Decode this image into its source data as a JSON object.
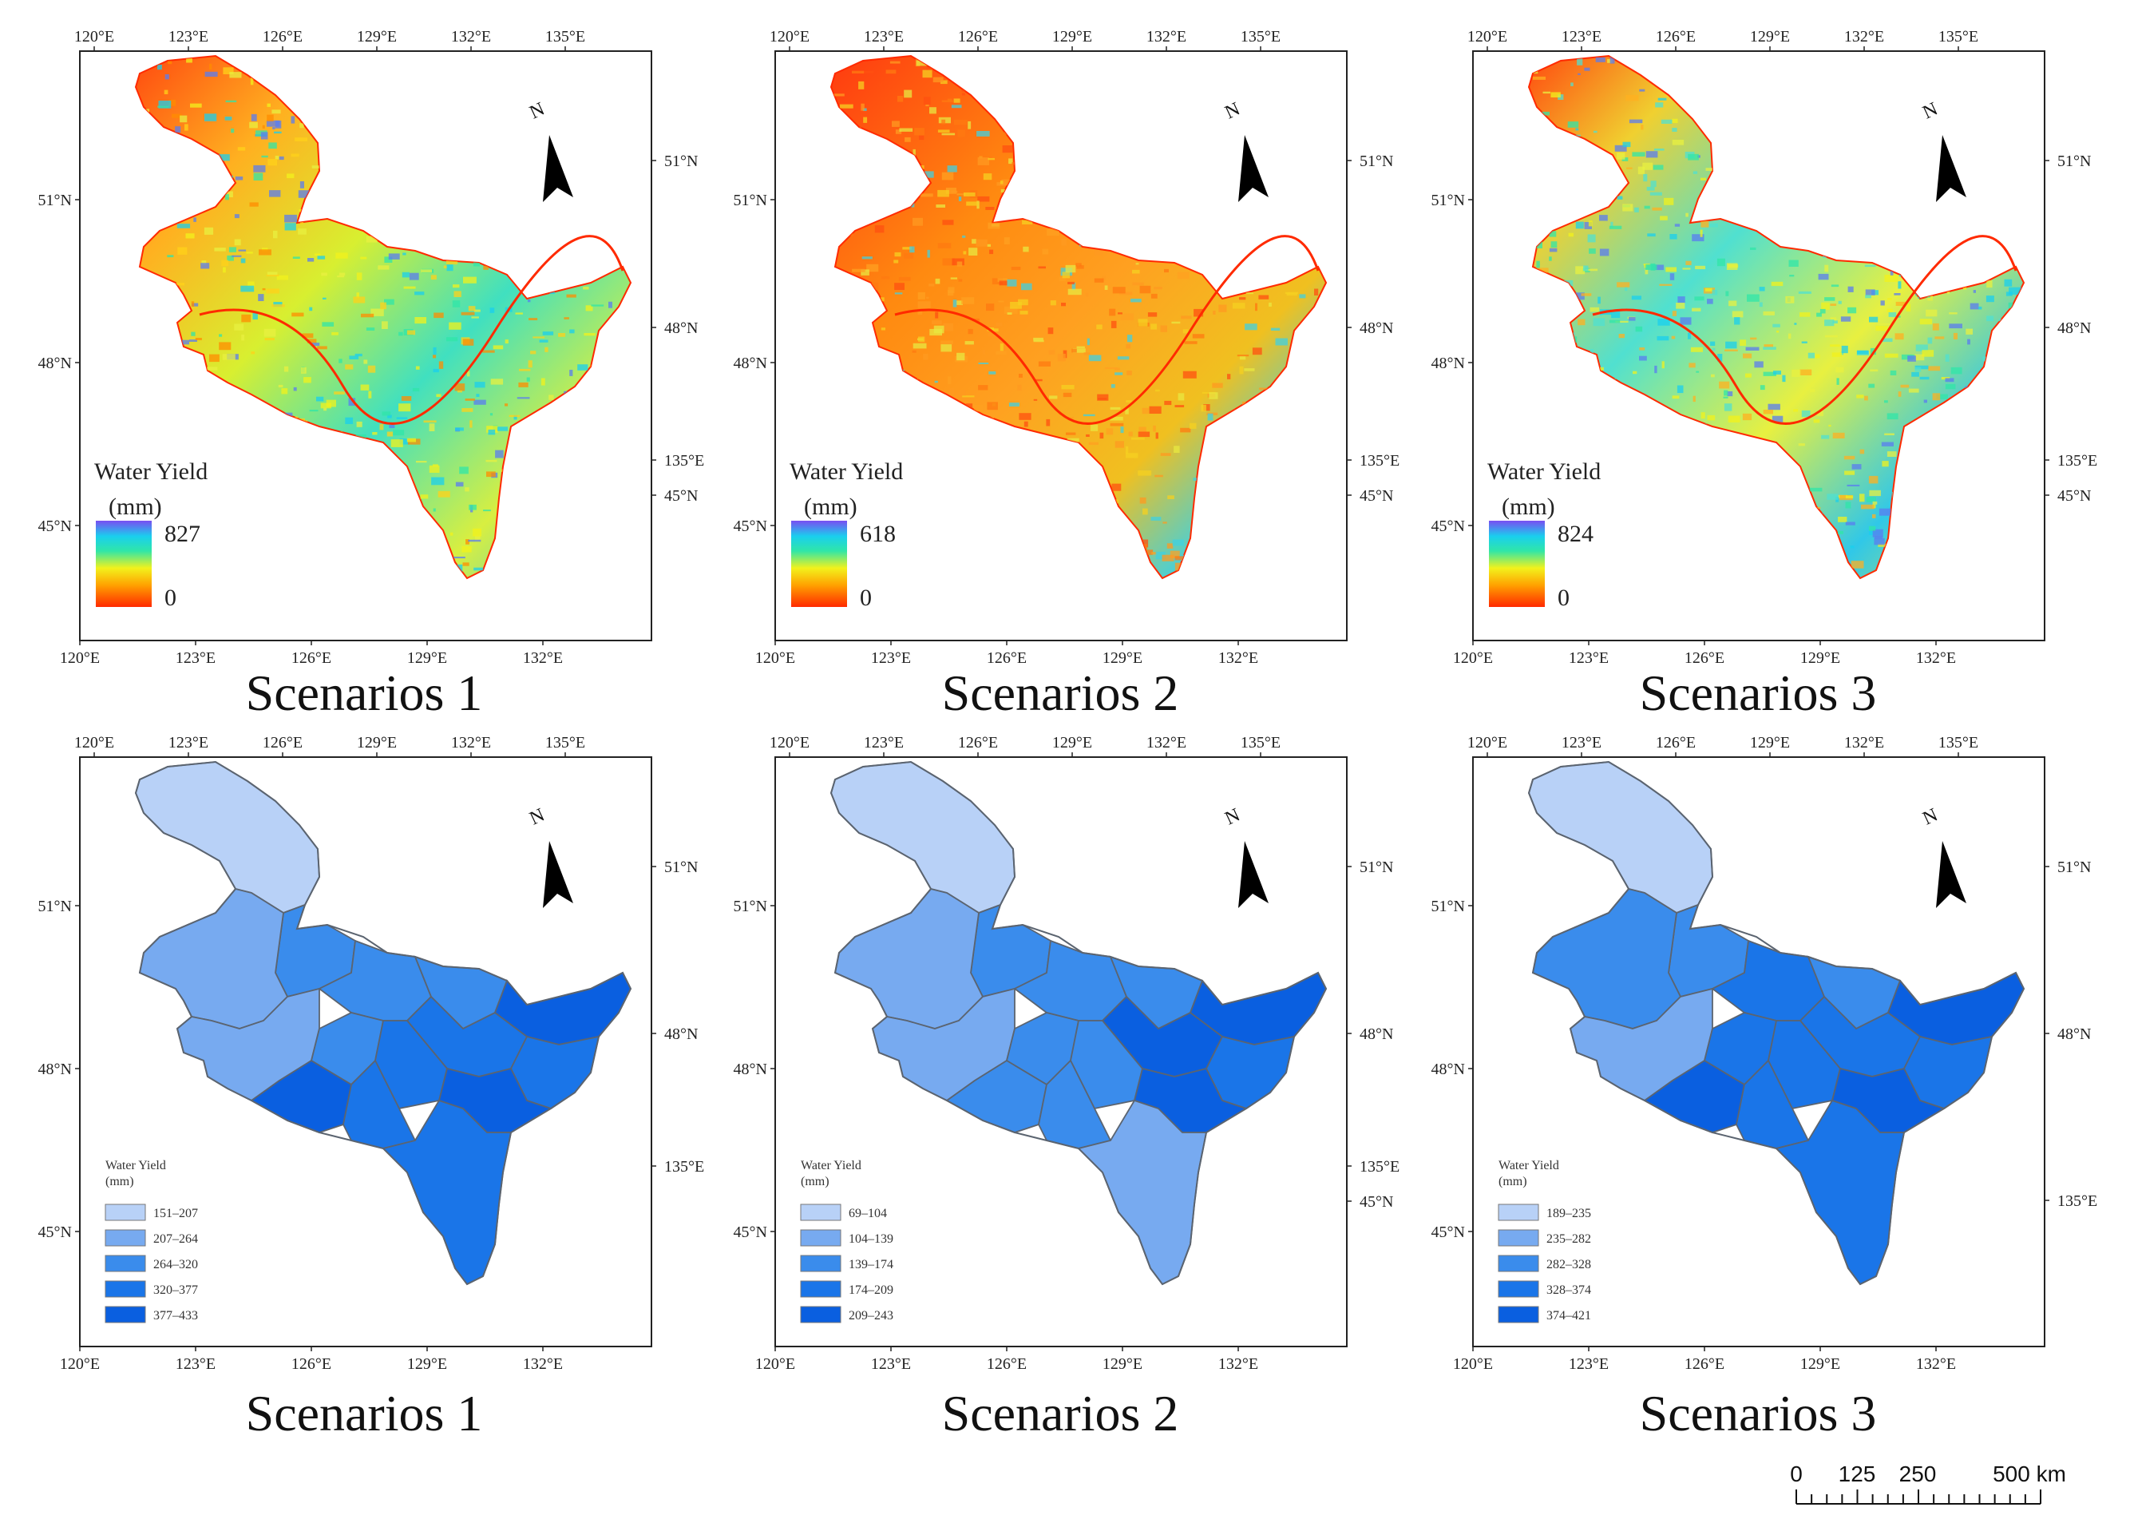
{
  "panels": [
    {
      "caption": "Scenarios 1",
      "legend_type": "gradient",
      "legend_title": "Water Yield",
      "legend_unit": "(mm)",
      "max_label": "827",
      "min_label": "0",
      "palette": "scenario1"
    },
    {
      "caption": "Scenarios 2",
      "legend_type": "gradient",
      "legend_title": "Water Yield",
      "legend_unit": "(mm)",
      "max_label": "618",
      "min_label": "0",
      "palette": "scenario2"
    },
    {
      "caption": "Scenarios 3",
      "legend_type": "gradient",
      "legend_title": "Water Yield",
      "legend_unit": "(mm)",
      "max_label": "824",
      "min_label": "0",
      "palette": "scenario3"
    },
    {
      "caption": "Scenarios 1",
      "legend_type": "classes",
      "legend_title": "Water Yield",
      "legend_unit": "(mm)",
      "classes": [
        "151–207",
        "207–264",
        "264–320",
        "320–377",
        "377–433"
      ]
    },
    {
      "caption": "Scenarios 2",
      "legend_type": "classes",
      "legend_title": "Water Yield",
      "legend_unit": "(mm)",
      "classes": [
        "69–104",
        "104–139",
        "139–174",
        "174–209",
        "209–243"
      ]
    },
    {
      "caption": "Scenarios 3",
      "legend_type": "classes",
      "legend_title": "Water Yield",
      "legend_unit": "(mm)",
      "classes": [
        "189–235",
        "235–282",
        "282–328",
        "328–374",
        "374–421"
      ]
    }
  ],
  "lon_ticks_top": [
    "120°E",
    "123°E",
    "126°E",
    "129°E",
    "132°E",
    "135°E"
  ],
  "lon_ticks_bottom": [
    "120°E",
    "123°E",
    "126°E",
    "129°E",
    "132°E"
  ],
  "lat_ticks_left": [
    "51°N",
    "48°N",
    "45°N"
  ],
  "lat_ticks_right": [
    "51°N",
    "48°N",
    "135°E",
    "45°N"
  ],
  "north_label": "N",
  "class_colors": [
    "#b8d1f7",
    "#77aaf0",
    "#3a8cec",
    "#1a75e8",
    "#0a5fe0"
  ],
  "gradient_colors": [
    "#ff2a00",
    "#ff8c00",
    "#f5f51c",
    "#39e8a0",
    "#19d3ee",
    "#6a5cf0"
  ],
  "scale_bar": {
    "labels": [
      "0",
      "125",
      "250",
      "500 km"
    ]
  }
}
